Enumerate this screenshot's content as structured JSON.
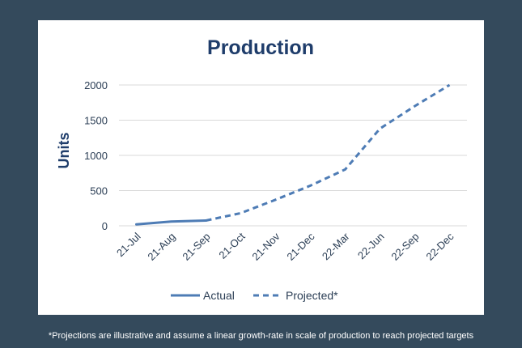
{
  "chart_data": {
    "type": "line",
    "title": "Production",
    "xlabel": "",
    "ylabel": "Units",
    "categories": [
      "21-Jul",
      "21-Aug",
      "21-Sep",
      "21-Oct",
      "21-Nov",
      "21-Dec",
      "22-Mar",
      "22-Jun",
      "22-Sep",
      "22-Dec"
    ],
    "ylim": [
      0,
      2000
    ],
    "yticks": [
      "0",
      "500",
      "1000",
      "1500",
      "2000"
    ],
    "grid": true,
    "legend_position": "bottom",
    "series": [
      {
        "name": "Actual",
        "style": "solid",
        "color": "#4e7cb5",
        "values": [
          20,
          60,
          75,
          null,
          null,
          null,
          null,
          null,
          null,
          null
        ]
      },
      {
        "name": "Projected*",
        "style": "dashed",
        "color": "#4e7cb5",
        "values": [
          null,
          null,
          75,
          180,
          370,
          570,
          800,
          1380,
          1700,
          2000
        ]
      }
    ]
  },
  "footnote": "*Projections are illustrative and assume a linear growth-rate in scale of production to reach projected targets"
}
